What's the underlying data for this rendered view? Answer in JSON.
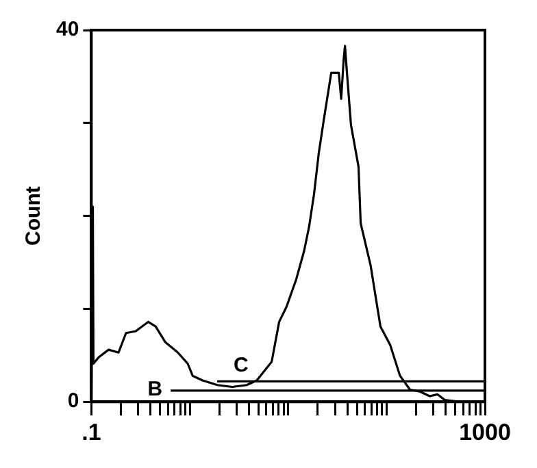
{
  "chart_data": {
    "type": "line",
    "ylabel": "Count",
    "log": "x",
    "xlim": [
      0.1,
      1000
    ],
    "ylim": [
      0,
      40
    ],
    "xticks": [
      {
        "value": 0.1,
        "label": ".1"
      },
      {
        "value": 0.2,
        "label": null
      },
      {
        "value": 0.3,
        "label": null
      },
      {
        "value": 0.4,
        "label": null
      },
      {
        "value": 0.5,
        "label": null
      },
      {
        "value": 0.6,
        "label": null
      },
      {
        "value": 0.7,
        "label": null
      },
      {
        "value": 0.8,
        "label": null
      },
      {
        "value": 0.9,
        "label": null
      },
      {
        "value": 1,
        "label": null
      },
      {
        "value": 2,
        "label": null
      },
      {
        "value": 3,
        "label": null
      },
      {
        "value": 4,
        "label": null
      },
      {
        "value": 5,
        "label": null
      },
      {
        "value": 6,
        "label": null
      },
      {
        "value": 7,
        "label": null
      },
      {
        "value": 8,
        "label": null
      },
      {
        "value": 9,
        "label": null
      },
      {
        "value": 10,
        "label": null
      },
      {
        "value": 20,
        "label": null
      },
      {
        "value": 30,
        "label": null
      },
      {
        "value": 40,
        "label": null
      },
      {
        "value": 50,
        "label": null
      },
      {
        "value": 60,
        "label": null
      },
      {
        "value": 70,
        "label": null
      },
      {
        "value": 80,
        "label": null
      },
      {
        "value": 90,
        "label": null
      },
      {
        "value": 100,
        "label": null
      },
      {
        "value": 200,
        "label": null
      },
      {
        "value": 300,
        "label": null
      },
      {
        "value": 400,
        "label": null
      },
      {
        "value": 500,
        "label": null
      },
      {
        "value": 600,
        "label": null
      },
      {
        "value": 700,
        "label": null
      },
      {
        "value": 800,
        "label": null
      },
      {
        "value": 900,
        "label": null
      },
      1000
    ],
    "yticks": [
      0,
      {
        "value": 10,
        "label": null
      },
      {
        "value": 20,
        "label": null
      },
      {
        "value": 30,
        "label": null
      },
      40
    ],
    "legend": false,
    "series": [
      {
        "color": "#000000",
        "x": [
          0.1,
          0.1035,
          0.105,
          0.119,
          0.15,
          0.189,
          0.225,
          0.283,
          0.378,
          0.45,
          0.566,
          0.757,
          0.954,
          1.07,
          1.35,
          1.91,
          2.7,
          3.8,
          4.8,
          6.8,
          8.1,
          9.6,
          12.1,
          14.5,
          16.3,
          18.3,
          20.5,
          23,
          27.4,
          32.7,
          34.6,
          36.7,
          37.8,
          39.6,
          43.5,
          51.9,
          54.6,
          68.8,
          86.7,
          109,
          137,
          173,
          218,
          275,
          329,
          390,
          548,
          1000
        ],
        "values": [
          0,
          21,
          4.1,
          4.8,
          5.6,
          5.3,
          7.4,
          7.6,
          8.6,
          8.1,
          6.4,
          5.3,
          4.1,
          2.8,
          2.3,
          1.8,
          1.6,
          1.8,
          2.3,
          4.3,
          8.6,
          10.2,
          13.2,
          16.2,
          18.8,
          22.3,
          26.8,
          30.3,
          35.4,
          35.4,
          32.6,
          36.9,
          38.3,
          35.4,
          29.8,
          25.3,
          19.2,
          14.7,
          8.1,
          6.1,
          2.8,
          1.3,
          1.1,
          0.6,
          0.8,
          0.2,
          0,
          0
        ]
      },
      {
        "name": "B",
        "color": "#000000",
        "x": [
          0.64,
          1000
        ],
        "values": [
          1.2,
          1.2
        ]
      },
      {
        "name": "C",
        "color": "#000000",
        "x": [
          1.9,
          1000
        ],
        "values": [
          2.2,
          2.2
        ]
      }
    ]
  }
}
